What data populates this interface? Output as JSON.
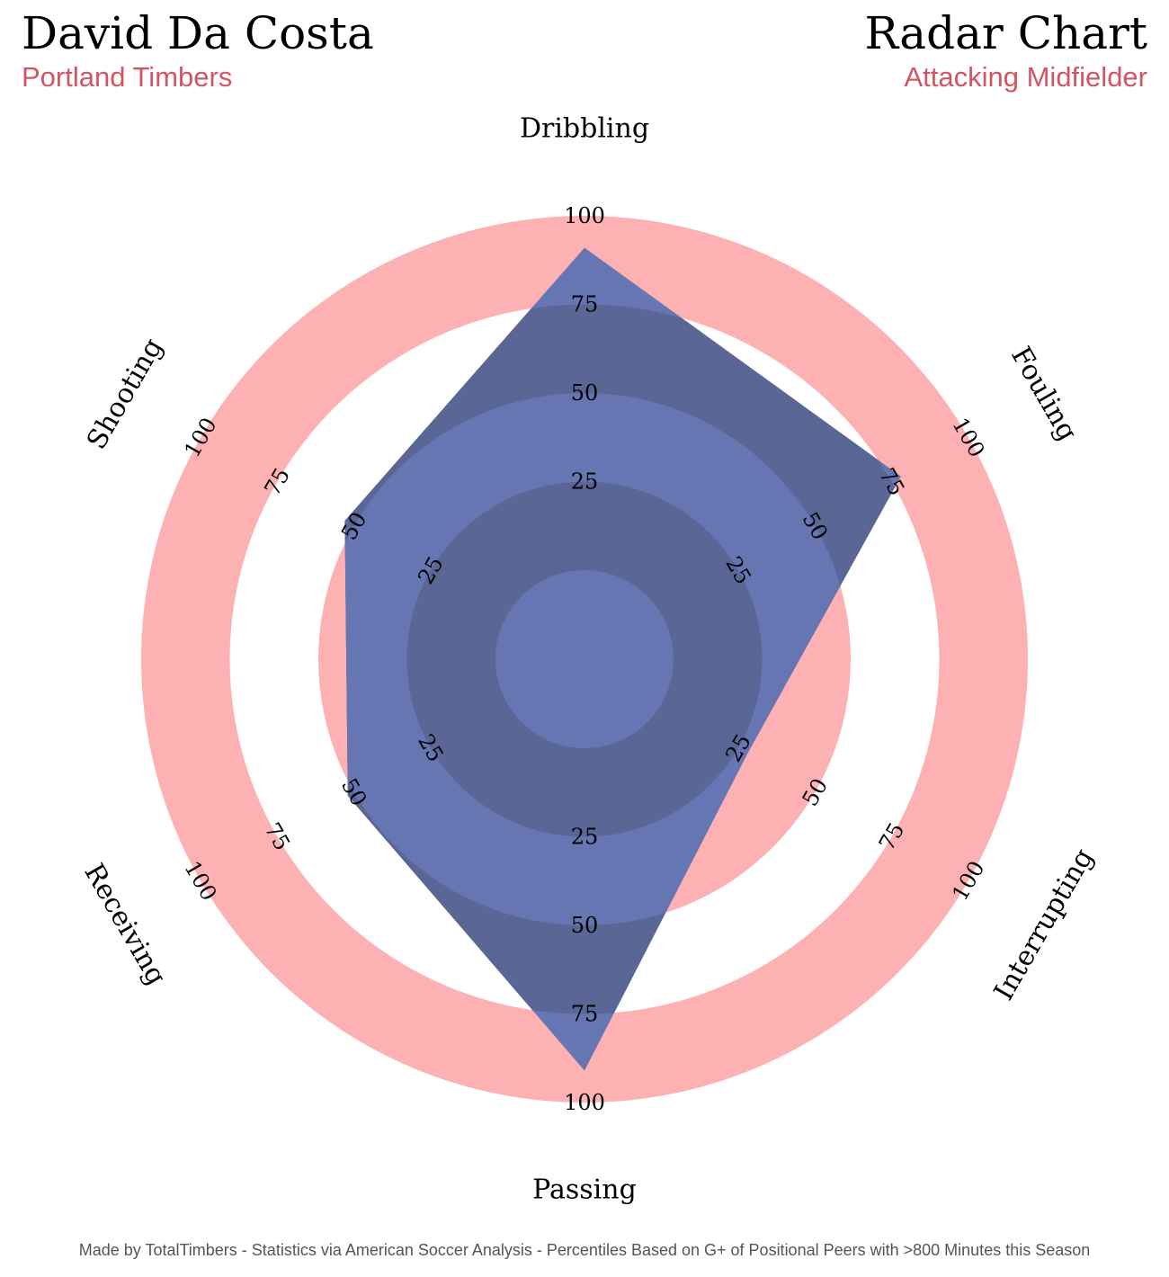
{
  "header": {
    "player_name": "David Da Costa",
    "team": "Portland Timbers",
    "chart_title": "Radar Chart",
    "position": "Attacking Midfielder"
  },
  "footer": {
    "credit": "Made by TotalTimbers - Statistics via American Soccer Analysis - Percentiles Based on G+ of Positional Peers with >800 Minutes this Season"
  },
  "colors": {
    "ring_light": "#6676b3",
    "ring_dark": "#5a6696",
    "ring_pink": "#feb1b2",
    "ring_white": "#ffffff",
    "polygon_fill": "#5262a6",
    "subtitle": "#d25563"
  },
  "chart_data": {
    "type": "radar",
    "categories": [
      "Dribbling",
      "Fouling",
      "Interrupting",
      "Passing",
      "Receiving",
      "Shooting"
    ],
    "values": [
      91,
      78,
      28,
      91,
      52,
      53
    ],
    "range": [
      0,
      100
    ],
    "ring_values": [
      25,
      50,
      75,
      100
    ],
    "ring_tick_labels": [
      "25",
      "50",
      "75",
      "100"
    ]
  }
}
